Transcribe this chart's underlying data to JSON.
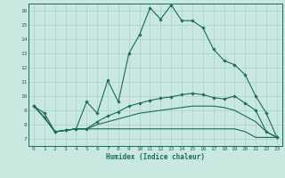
{
  "xlabel": "Humidex (Indice chaleur)",
  "bg_color": "#c8e8e0",
  "grid_color": "#a8d0c8",
  "line_color": "#1a6b5a",
  "xlim": [
    -0.5,
    23.5
  ],
  "ylim": [
    6.5,
    16.5
  ],
  "xticks": [
    0,
    1,
    2,
    3,
    4,
    5,
    6,
    7,
    8,
    9,
    10,
    11,
    12,
    13,
    14,
    15,
    16,
    17,
    18,
    19,
    20,
    21,
    22,
    23
  ],
  "yticks": [
    7,
    8,
    9,
    10,
    11,
    12,
    13,
    14,
    15,
    16
  ],
  "curve1_x": [
    0,
    1,
    2,
    3,
    4,
    5,
    6,
    7,
    8,
    9,
    10,
    11,
    12,
    13,
    14,
    15,
    16,
    17,
    18,
    19,
    20,
    21,
    22,
    23
  ],
  "curve1_y": [
    9.3,
    8.8,
    7.5,
    7.6,
    7.7,
    9.6,
    8.8,
    11.1,
    9.6,
    13.0,
    14.3,
    16.2,
    15.4,
    16.4,
    15.3,
    15.3,
    14.8,
    13.3,
    12.5,
    12.2,
    11.5,
    10.0,
    8.8,
    7.1
  ],
  "curve2_x": [
    0,
    1,
    2,
    3,
    4,
    5,
    6,
    7,
    8,
    9,
    10,
    11,
    12,
    13,
    14,
    15,
    16,
    17,
    18,
    19,
    20,
    21,
    22,
    23
  ],
  "curve2_y": [
    9.3,
    8.5,
    7.5,
    7.6,
    7.7,
    7.7,
    8.2,
    8.6,
    8.9,
    9.3,
    9.5,
    9.7,
    9.85,
    9.95,
    10.1,
    10.2,
    10.1,
    9.9,
    9.8,
    10.0,
    9.5,
    9.0,
    7.5,
    7.1
  ],
  "curve3_x": [
    0,
    1,
    2,
    3,
    4,
    5,
    6,
    7,
    8,
    9,
    10,
    11,
    12,
    13,
    14,
    15,
    16,
    17,
    18,
    19,
    20,
    21,
    22,
    23
  ],
  "curve3_y": [
    9.3,
    8.5,
    7.5,
    7.6,
    7.7,
    7.7,
    8.0,
    8.2,
    8.4,
    8.6,
    8.8,
    8.9,
    9.0,
    9.1,
    9.2,
    9.3,
    9.3,
    9.3,
    9.2,
    9.0,
    8.6,
    8.2,
    7.5,
    7.1
  ],
  "curve4_x": [
    0,
    1,
    2,
    3,
    4,
    5,
    6,
    7,
    8,
    9,
    10,
    11,
    12,
    13,
    14,
    15,
    16,
    17,
    18,
    19,
    20,
    21,
    22,
    23
  ],
  "curve4_y": [
    9.3,
    8.5,
    7.5,
    7.6,
    7.7,
    7.7,
    7.7,
    7.7,
    7.7,
    7.7,
    7.7,
    7.7,
    7.7,
    7.7,
    7.7,
    7.7,
    7.7,
    7.7,
    7.7,
    7.7,
    7.5,
    7.1,
    7.1,
    7.1
  ]
}
